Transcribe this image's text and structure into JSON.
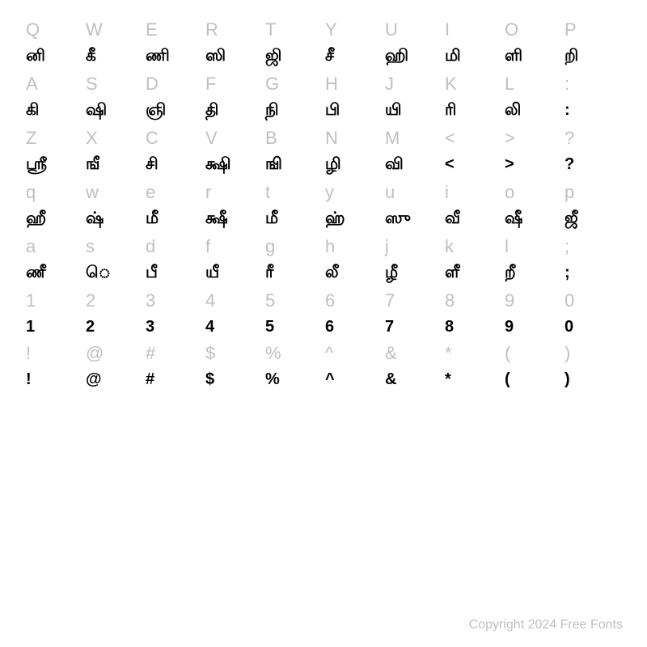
{
  "rows": [
    {
      "keys": [
        "Q",
        "W",
        "E",
        "R",
        "T",
        "Y",
        "U",
        "I",
        "O",
        "P"
      ],
      "glyphs": [
        "னி",
        "கீ",
        "ணி",
        "ஸி",
        "ஜி",
        "சீ",
        "ஹி",
        "மி",
        "ளி",
        "றி"
      ]
    },
    {
      "keys": [
        "A",
        "S",
        "D",
        "F",
        "G",
        "H",
        "J",
        "K",
        "L",
        ":"
      ],
      "glyphs": [
        "கி",
        "ஷி",
        "ஞி",
        "தி",
        "நி",
        "பி",
        "யி",
        "ரி",
        "லி",
        ":"
      ]
    },
    {
      "keys": [
        "Z",
        "X",
        "C",
        "V",
        "B",
        "N",
        "M",
        "<",
        ">",
        "?"
      ],
      "glyphs": [
        "ஸ்ரீ",
        "ஙீ",
        "சி",
        "க்ஷி",
        "ஙி",
        "ழி",
        "வி",
        "<",
        ">",
        "?"
      ]
    },
    {
      "keys": [
        "q",
        "w",
        "e",
        "r",
        "t",
        "y",
        "u",
        "i",
        "o",
        "p"
      ],
      "glyphs": [
        "ஹீ",
        "ஷ்",
        "மீ",
        "க்ஷீ",
        "மீ",
        "ஹ்",
        "ஸு",
        "வீ",
        "ஷீ",
        "ஜீ"
      ]
    },
    {
      "keys": [
        "a",
        "s",
        "d",
        "f",
        "g",
        "h",
        "j",
        "k",
        "l",
        ";"
      ],
      "glyphs": [
        "ணீ",
        "ெ",
        "பீ",
        "யீ",
        "ரீ",
        "லீ",
        "ழீ",
        "ளீ",
        "றீ",
        ";"
      ]
    },
    {
      "keys": [
        "1",
        "2",
        "3",
        "4",
        "5",
        "6",
        "7",
        "8",
        "9",
        "0"
      ],
      "glyphs": [
        "1",
        "2",
        "3",
        "4",
        "5",
        "6",
        "7",
        "8",
        "9",
        "0"
      ]
    },
    {
      "keys": [
        "!",
        "@",
        "#",
        "$",
        "%",
        "^",
        "&",
        "*",
        "(",
        ")"
      ],
      "glyphs": [
        "!",
        "@",
        "#",
        "$",
        "%",
        "^",
        "&",
        "*",
        "(",
        ")"
      ]
    }
  ],
  "footer": "Copyright 2024 Free Fonts",
  "colors": {
    "key": "#c0c0c0",
    "glyph": "#000000",
    "background": "#ffffff",
    "footer": "#c0c0c0"
  },
  "layout": {
    "columns": 10,
    "key_fontsize": 22,
    "glyph_fontsize": 20
  }
}
